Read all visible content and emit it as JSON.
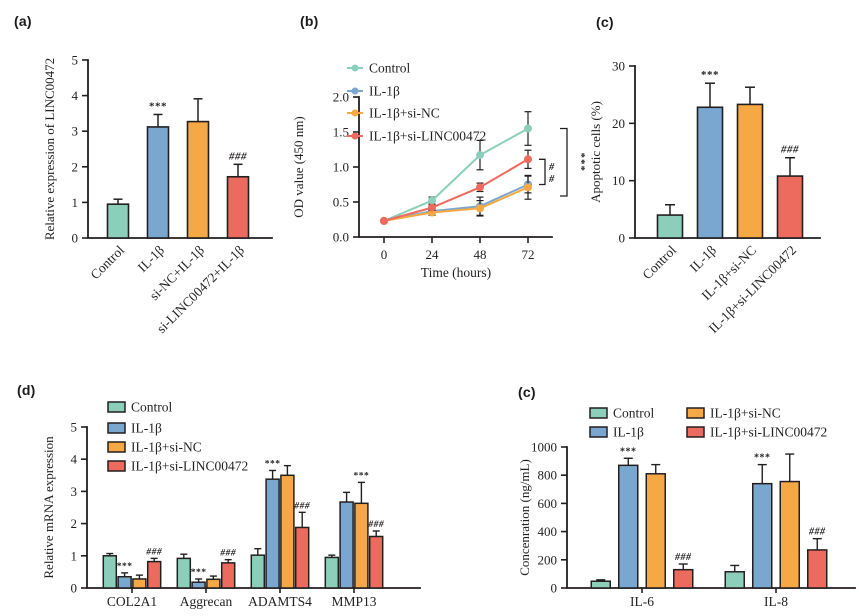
{
  "colors": {
    "control": "#8BCFBA",
    "il1b": "#79A7D0",
    "si_nc": "#F5A843",
    "si_linc": "#EC6A5E",
    "axis": "#231F20"
  },
  "chart_data": [
    {
      "panel_label": "(a)",
      "type": "bar",
      "ylabel": "Relative expression of LINC00472",
      "ylim": [
        0,
        5
      ],
      "yticks": [
        "0",
        "1",
        "2",
        "3",
        "4",
        "5"
      ],
      "categories": [
        "Control",
        "IL-1β",
        "si-NC+IL-1β",
        "si-LINC00472+IL-1β"
      ],
      "color_keys": [
        "control",
        "il1b",
        "si_nc",
        "si_linc"
      ],
      "values": [
        0.95,
        3.12,
        3.27,
        1.72
      ],
      "errors": [
        0.14,
        0.35,
        0.64,
        0.35
      ],
      "annotations": [
        "",
        "***",
        "",
        "###"
      ]
    },
    {
      "panel_label": "(b)",
      "type": "line",
      "xlabel": "Time (hours)",
      "ylabel": "OD value (450 nm)",
      "x": [
        0,
        24,
        48,
        72
      ],
      "xtick_labels": [
        "0",
        "24",
        "48",
        "72"
      ],
      "ylim": [
        0,
        2
      ],
      "yticks": [
        "0.0",
        "0.5",
        "1.0",
        "1.5",
        "2.0"
      ],
      "series": [
        {
          "name": "Control",
          "color_key": "control",
          "values": [
            0.23,
            0.52,
            1.17,
            1.55
          ],
          "errors": [
            0.02,
            0.05,
            0.21,
            0.24
          ]
        },
        {
          "name": "IL-1β",
          "color_key": "il1b",
          "values": [
            0.23,
            0.37,
            0.44,
            0.75
          ],
          "errors": [
            0.02,
            0.04,
            0.13,
            0.12
          ]
        },
        {
          "name": "IL-1β+si-NC",
          "color_key": "si_nc",
          "values": [
            0.23,
            0.35,
            0.41,
            0.71
          ],
          "errors": [
            0.02,
            0.04,
            0.11,
            0.17
          ]
        },
        {
          "name": "IL-1β+si-LINC00472",
          "color_key": "si_linc",
          "values": [
            0.23,
            0.42,
            0.71,
            1.11
          ],
          "errors": [
            0.02,
            0.04,
            0.06,
            0.13
          ]
        }
      ],
      "brackets": {
        "inner_labels": [
          "#",
          "#"
        ],
        "outer_label": "***"
      }
    },
    {
      "panel_label": "(c)",
      "type": "bar",
      "ylabel": "Apoptotic cells (%)",
      "ylim": [
        0,
        30
      ],
      "yticks": [
        "0",
        "10",
        "20",
        "30"
      ],
      "categories": [
        "Control",
        "IL-1β",
        "IL-1β+si-NC",
        "IL-1β+si-LINC00472"
      ],
      "color_keys": [
        "control",
        "il1b",
        "si_nc",
        "si_linc"
      ],
      "values": [
        4.0,
        22.8,
        23.3,
        10.8
      ],
      "errors": [
        1.8,
        4.2,
        3.0,
        3.2
      ],
      "annotations": [
        "",
        "***",
        "",
        "###"
      ]
    },
    {
      "panel_label": "(d)",
      "type": "grouped_bar",
      "ylabel": "Relative mRNA expression",
      "ylim": [
        0,
        5
      ],
      "yticks": [
        "0",
        "1",
        "2",
        "3",
        "4",
        "5"
      ],
      "categories": [
        "COL2A1",
        "Aggrecan",
        "ADAMTS4",
        "MMP13"
      ],
      "series": [
        {
          "name": "Control",
          "color_key": "control",
          "values": [
            1.0,
            0.92,
            1.02,
            0.95
          ],
          "errors": [
            0.07,
            0.13,
            0.2,
            0.07
          ],
          "annotations": [
            "",
            "",
            "",
            ""
          ]
        },
        {
          "name": "IL-1β",
          "color_key": "il1b",
          "values": [
            0.35,
            0.18,
            3.38,
            2.67
          ],
          "errors": [
            0.12,
            0.1,
            0.27,
            0.3
          ],
          "annotations": [
            "***",
            "***",
            "***",
            ""
          ]
        },
        {
          "name": "IL-1β+si-NC",
          "color_key": "si_nc",
          "values": [
            0.28,
            0.27,
            3.5,
            2.63
          ],
          "errors": [
            0.12,
            0.1,
            0.3,
            0.65
          ],
          "annotations": [
            "",
            "",
            "",
            "***"
          ]
        },
        {
          "name": "IL-1β+si-LINC00472",
          "color_key": "si_linc",
          "values": [
            0.82,
            0.78,
            1.88,
            1.6
          ],
          "errors": [
            0.1,
            0.1,
            0.47,
            0.17
          ],
          "annotations": [
            "###",
            "###",
            "###",
            "###"
          ]
        }
      ]
    },
    {
      "panel_label": "(c)",
      "type": "grouped_bar",
      "ylabel": "Concenration (ng/mL)",
      "ylim": [
        0,
        1000
      ],
      "yticks": [
        "0",
        "200",
        "400",
        "600",
        "800",
        "1000"
      ],
      "categories": [
        "IL-6",
        "IL-8"
      ],
      "series": [
        {
          "name": "Control",
          "color_key": "control",
          "values": [
            48,
            115
          ],
          "errors": [
            10,
            45
          ],
          "annotations": [
            "",
            ""
          ]
        },
        {
          "name": "IL-1β",
          "color_key": "il1b",
          "values": [
            870,
            740
          ],
          "errors": [
            50,
            135
          ],
          "annotations": [
            "***",
            "***"
          ]
        },
        {
          "name": "IL-1β+si-NC",
          "color_key": "si_nc",
          "values": [
            810,
            755
          ],
          "errors": [
            65,
            195
          ],
          "annotations": [
            "",
            ""
          ]
        },
        {
          "name": "IL-1β+si-LINC00472",
          "color_key": "si_linc",
          "values": [
            130,
            270
          ],
          "errors": [
            40,
            80
          ],
          "annotations": [
            "###",
            "###"
          ]
        }
      ]
    }
  ]
}
